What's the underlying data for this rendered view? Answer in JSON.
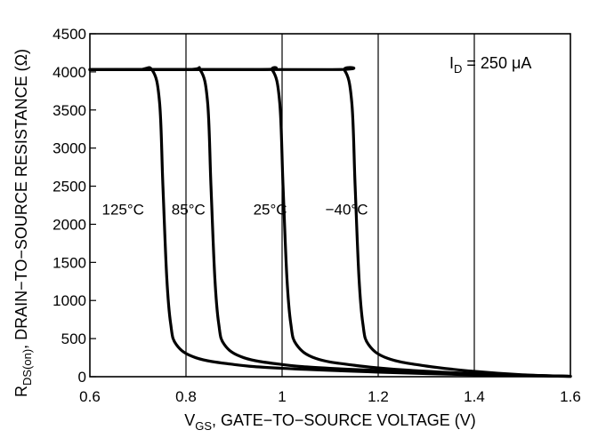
{
  "chart_data": {
    "type": "line",
    "xlabel": {
      "main": "V",
      "sub": "GS",
      "rest": ", GATE−TO−SOURCE VOLTAGE (V)"
    },
    "ylabel": {
      "main": "R",
      "sub": "DS(on)",
      "rest": ", DRAIN−TO−SOURCE RESISTANCE (Ω)"
    },
    "xlim": [
      0.6,
      1.6
    ],
    "ylim": [
      0,
      4500
    ],
    "x_ticks": [
      0.6,
      0.8,
      1.0,
      1.2,
      1.4,
      1.6
    ],
    "x_tick_labels": [
      "0.6",
      "0.8",
      "1",
      "1.2",
      "1.4",
      "1.6"
    ],
    "y_ticks": [
      0,
      500,
      1000,
      1500,
      2000,
      2500,
      3000,
      3500,
      4000,
      4500
    ],
    "y_tick_labels": [
      "0",
      "500",
      "1000",
      "1500",
      "2000",
      "2500",
      "3000",
      "3500",
      "4000",
      "4500"
    ],
    "grid": "vertical",
    "annotation": {
      "main": "I",
      "sub": "D",
      "rest": " = 250 μA"
    },
    "series": [
      {
        "name": "125°C",
        "x": [
          0.6,
          0.7,
          0.73,
          0.745,
          0.752,
          0.76,
          0.768,
          0.78,
          0.82,
          0.9,
          1.0,
          1.2,
          1.4,
          1.6
        ],
        "y": [
          4030,
          4030,
          4020,
          3600,
          2500,
          1300,
          700,
          420,
          250,
          160,
          110,
          60,
          25,
          5
        ]
      },
      {
        "name": "85°C",
        "x": [
          0.6,
          0.8,
          0.83,
          0.845,
          0.852,
          0.86,
          0.868,
          0.88,
          0.92,
          1.0,
          1.1,
          1.3,
          1.5,
          1.6
        ],
        "y": [
          4030,
          4030,
          4020,
          3600,
          2500,
          1300,
          700,
          420,
          250,
          160,
          110,
          60,
          20,
          5
        ]
      },
      {
        "name": "25°C",
        "x": [
          0.6,
          0.95,
          0.98,
          0.995,
          1.002,
          1.01,
          1.018,
          1.03,
          1.07,
          1.15,
          1.25,
          1.4,
          1.55,
          1.6
        ],
        "y": [
          4030,
          4030,
          4020,
          3600,
          2500,
          1300,
          700,
          420,
          240,
          150,
          90,
          40,
          12,
          5
        ]
      },
      {
        "name": "−40°C",
        "x": [
          0.6,
          1.1,
          1.13,
          1.145,
          1.152,
          1.16,
          1.168,
          1.18,
          1.22,
          1.3,
          1.4,
          1.5,
          1.6
        ],
        "y": [
          4030,
          4030,
          4020,
          3600,
          2500,
          1300,
          700,
          420,
          240,
          140,
          70,
          25,
          5
        ]
      }
    ],
    "series_labels": [
      {
        "text": "125°C",
        "x": 0.625,
        "y": 2130
      },
      {
        "text": "85°C",
        "x": 0.77,
        "y": 2130
      },
      {
        "text": "25°C",
        "x": 0.94,
        "y": 2130
      },
      {
        "text": "−40°C",
        "x": 1.09,
        "y": 2130
      }
    ]
  }
}
